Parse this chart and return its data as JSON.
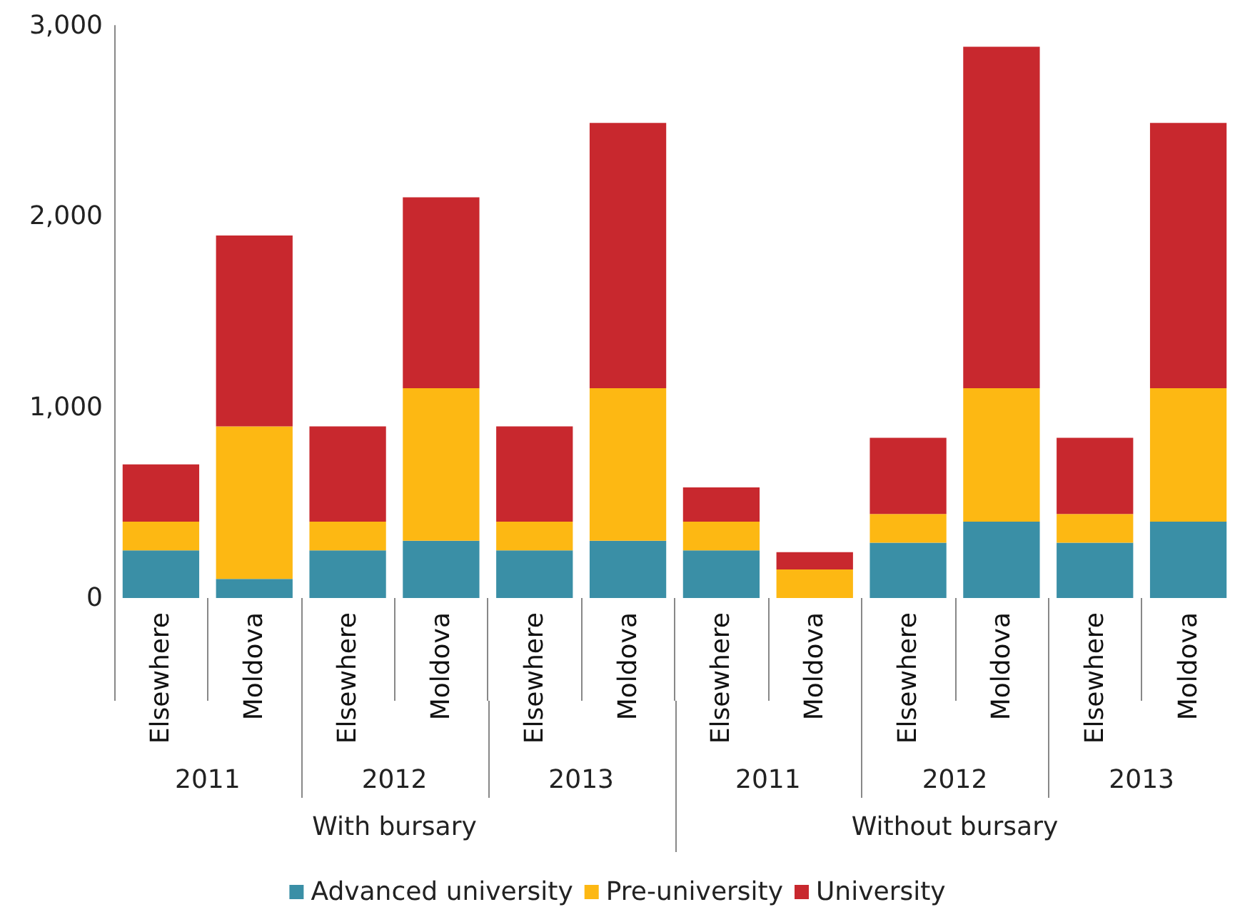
{
  "chart_data": {
    "type": "bar",
    "stacked": true,
    "categories": [
      "Elsewhere",
      "Moldova",
      "Elsewhere",
      "Moldova",
      "Elsewhere",
      "Moldova",
      "Elsewhere",
      "Moldova",
      "Elsewhere",
      "Moldova",
      "Elsewhere",
      "Moldova"
    ],
    "annotations": [
      "2011",
      "2012",
      "2013",
      "2011",
      "2012",
      "2013",
      "With bursary",
      "Without bursary"
    ],
    "series": [
      {
        "name": "Advanced university",
        "color": "#3a8fa6",
        "values": [
          250,
          100,
          250,
          300,
          250,
          300,
          250,
          0,
          290,
          400,
          290,
          400
        ]
      },
      {
        "name": "Pre-university",
        "color": "#fdb813",
        "values": [
          150,
          800,
          150,
          800,
          150,
          800,
          150,
          150,
          150,
          700,
          150,
          700
        ]
      },
      {
        "name": "University",
        "color": "#c8282e",
        "values": [
          300,
          1000,
          500,
          1000,
          500,
          1390,
          180,
          90,
          400,
          1790,
          400,
          1390
        ]
      }
    ],
    "ylim": [
      0,
      3000
    ],
    "yticks": [
      0,
      {
        "value": 1000,
        "label": "1,000"
      },
      {
        "value": 2000,
        "label": "2,000"
      },
      {
        "value": 3000,
        "label": "3,000"
      }
    ],
    "grid": false,
    "legend": "bottom"
  }
}
